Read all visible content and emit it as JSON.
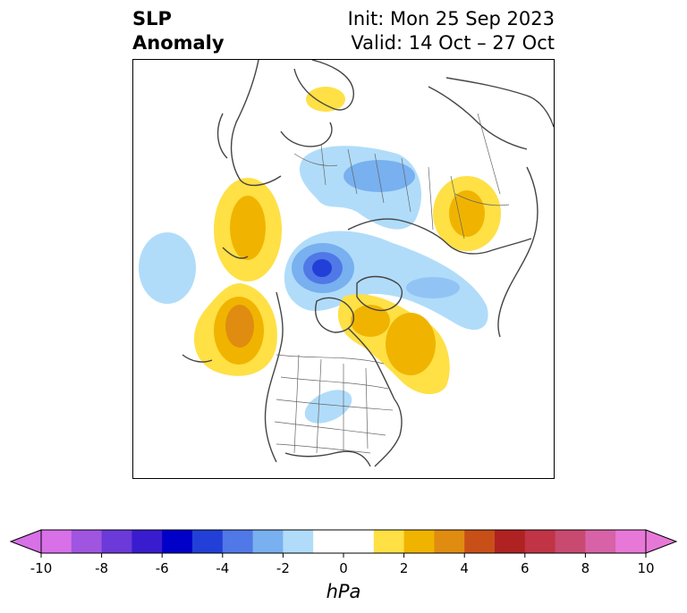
{
  "title": {
    "main_line1": "SLP",
    "main_line2": "Anomaly",
    "init": "Init: Mon 25 Sep 2023",
    "valid": "Valid: 14 Oct – 27 Oct"
  },
  "map": {
    "projection": "north-polar-stereographic",
    "region": "Northern Hemisphere",
    "features": [
      "coastlines",
      "country borders",
      "US state borders"
    ],
    "anomaly_regions": [
      {
        "area": "Northern Scandinavia",
        "sign": "positive",
        "max_hPa": 2
      },
      {
        "area": "Northern Europe / Western Russia",
        "sign": "negative",
        "max_hPa": -2
      },
      {
        "area": "Central Siberia",
        "sign": "positive",
        "max_hPa": 2
      },
      {
        "area": "Kamchatka / Bering Sea",
        "sign": "positive",
        "max_hPa": 2
      },
      {
        "area": "Western Mediterranean / Atlantic",
        "sign": "negative",
        "max_hPa": -2
      },
      {
        "area": "Central Arctic / Greenland",
        "sign": "negative",
        "max_hPa": -6
      },
      {
        "area": "Siberian Arctic coast",
        "sign": "negative",
        "max_hPa": -2
      },
      {
        "area": "North Pacific / Gulf of Alaska",
        "sign": "positive",
        "max_hPa": 4
      },
      {
        "area": "Hudson Bay / Eastern Canada",
        "sign": "positive",
        "max_hPa": 2
      },
      {
        "area": "Central United States",
        "sign": "negative",
        "max_hPa": -2
      }
    ]
  },
  "colorbar": {
    "unit": "hPa",
    "ticks": [
      "-10",
      "-8",
      "-6",
      "-4",
      "-2",
      "0",
      "2",
      "4",
      "6",
      "8",
      "10"
    ],
    "colors": [
      "#d870e8",
      "#a055e0",
      "#6b3ad8",
      "#3a1ccf",
      "#0000c8",
      "#2240d8",
      "#5078e6",
      "#78b0f0",
      "#b0dcfa",
      "#ffffff",
      "#ffffff",
      "#ffe045",
      "#f0b400",
      "#e08c10",
      "#c85018",
      "#b02222",
      "#c03446",
      "#c84a70",
      "#d862a8",
      "#e878d8"
    ]
  }
}
